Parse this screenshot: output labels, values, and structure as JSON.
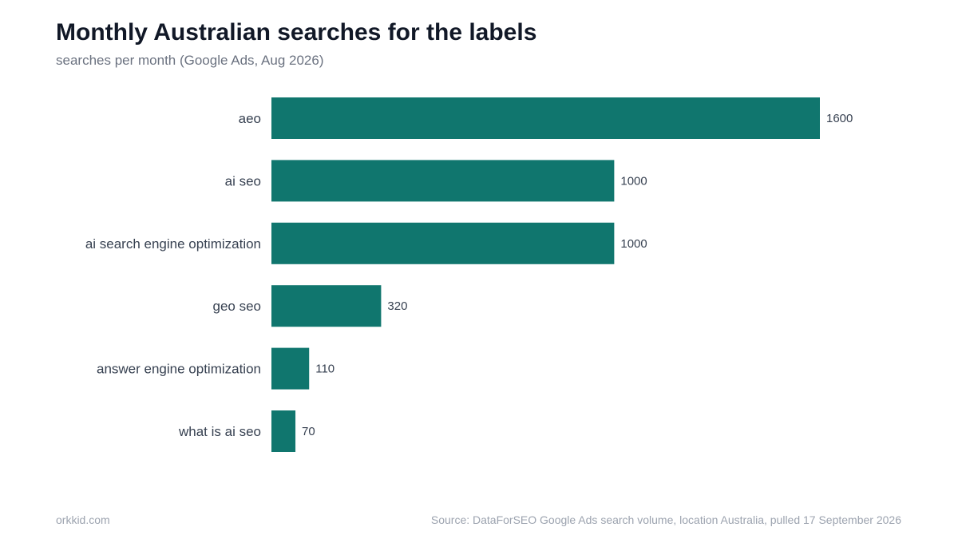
{
  "chart_data": {
    "type": "bar",
    "orientation": "horizontal",
    "title": "Monthly Australian searches for the labels",
    "subtitle": "searches per month (Google Ads, Aug 2026)",
    "categories": [
      "aeo",
      "ai seo",
      "ai search engine optimization",
      "geo seo",
      "answer engine optimization",
      "what is ai seo"
    ],
    "values": [
      1600,
      1000,
      1000,
      320,
      110,
      70
    ],
    "xlim": [
      0,
      1600
    ],
    "grid": false,
    "legend": "none",
    "bar_color": "#10766e"
  },
  "footer": {
    "left": "orkkid.com",
    "right": "Source: DataForSEO Google Ads search volume, location Australia, pulled 17 September 2026"
  },
  "colors": {
    "title": "#111827",
    "subtitle": "#6b7280",
    "category_label": "#374151",
    "value_label": "#374151",
    "footer": "#9ca3af"
  }
}
